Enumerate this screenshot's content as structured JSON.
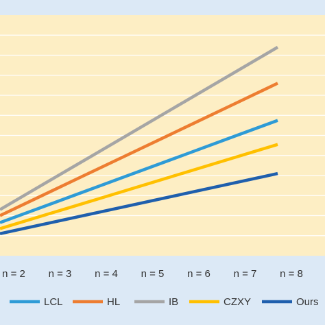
{
  "chart_data": {
    "type": "line",
    "categories": [
      "n = 2",
      "n = 3",
      "n = 4",
      "n = 5",
      "n = 6",
      "n = 7",
      "n = 8"
    ],
    "series": [
      {
        "name": "LCL",
        "color": "#2e9bd6",
        "values": [
          3.3,
          5.0,
          6.7,
          8.4,
          10.1,
          11.8,
          13.5
        ]
      },
      {
        "name": "HL",
        "color": "#ed7d31",
        "values": [
          4.0,
          6.2,
          8.4,
          10.6,
          12.8,
          15.0,
          17.2
        ]
      },
      {
        "name": "IB",
        "color": "#a5a5a5",
        "values": [
          4.6,
          7.3,
          10.0,
          12.7,
          15.4,
          18.1,
          20.8
        ]
      },
      {
        "name": "CZXY",
        "color": "#ffc000",
        "values": [
          2.7,
          4.1,
          5.5,
          6.9,
          8.3,
          9.7,
          11.1
        ]
      },
      {
        "name": "Ours",
        "color": "#1f5fad",
        "values": [
          2.2,
          3.2,
          4.2,
          5.2,
          6.2,
          7.2,
          8.2
        ]
      }
    ],
    "ylim": [
      0,
      24
    ],
    "grid": true,
    "legend": "bottom",
    "colors": {
      "plot_background": "#fdeec4",
      "outer_background": "#dce9f6",
      "gridline": "#ffffff"
    }
  }
}
